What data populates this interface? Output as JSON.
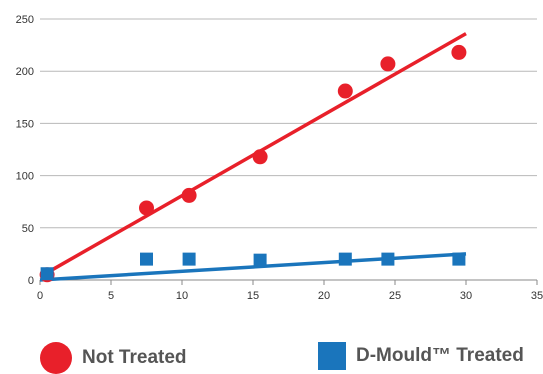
{
  "chart_data": {
    "type": "scatter",
    "title": "",
    "xlabel": "",
    "ylabel": "",
    "xlim": [
      0,
      35
    ],
    "ylim": [
      0,
      250
    ],
    "x_ticks": [
      "0",
      "5",
      "10",
      "15",
      "20",
      "25",
      "30",
      "35"
    ],
    "y_ticks": [
      "0",
      "50",
      "100",
      "150",
      "200",
      "250"
    ],
    "grid": "horizontal",
    "legend_position": "bottom",
    "series": [
      {
        "name": "Not Treated",
        "color": "#e8202a",
        "marker": "circle",
        "points": [
          [
            0.5,
            5
          ],
          [
            7.5,
            69
          ],
          [
            10.5,
            81
          ],
          [
            15.5,
            118
          ],
          [
            21.5,
            181
          ],
          [
            24.5,
            207
          ],
          [
            29.5,
            218
          ]
        ],
        "trendline": [
          [
            0.5,
            7
          ],
          [
            30,
            236
          ]
        ]
      },
      {
        "name": "D-Mould™ Treated",
        "color": "#1a75bc",
        "marker": "square",
        "points": [
          [
            0.5,
            6
          ],
          [
            7.5,
            20
          ],
          [
            10.5,
            20
          ],
          [
            15.5,
            19
          ],
          [
            21.5,
            20
          ],
          [
            24.5,
            20
          ],
          [
            29.5,
            20
          ]
        ],
        "trendline": [
          [
            0,
            0
          ],
          [
            30,
            25
          ]
        ]
      }
    ]
  }
}
